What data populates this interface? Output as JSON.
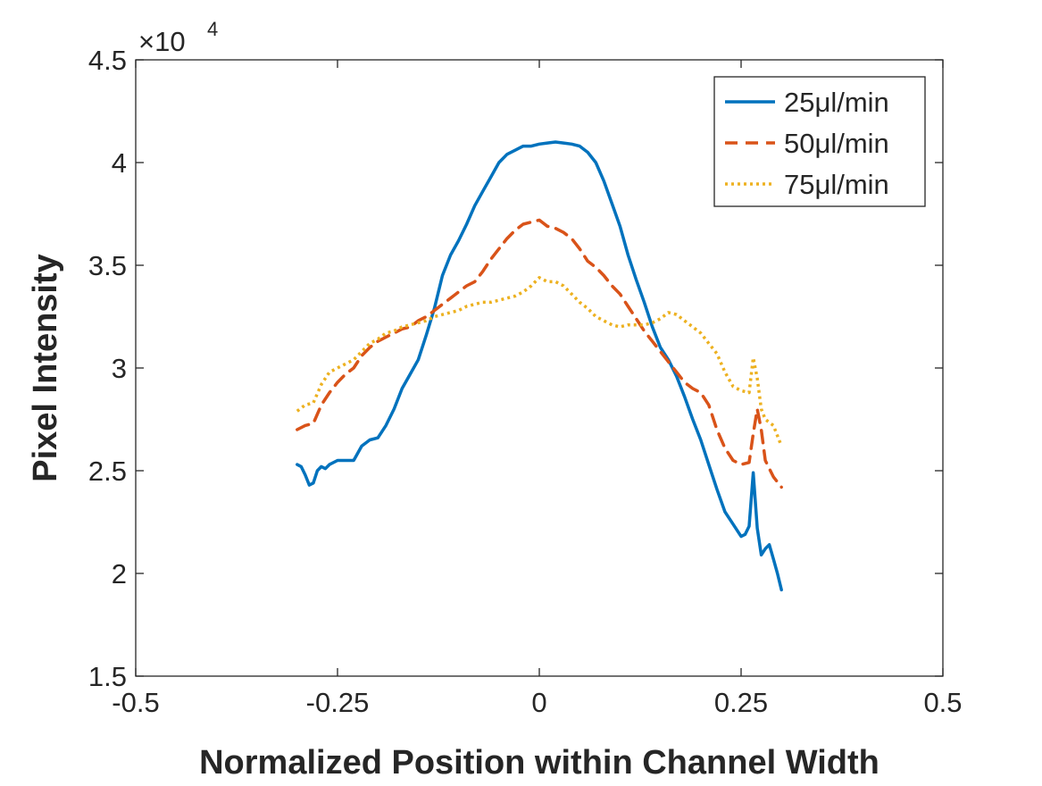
{
  "chart_data": {
    "type": "line",
    "title": "",
    "xlabel": "Normalized Position within Channel Width",
    "ylabel": "Pixel Intensity",
    "xlim": [
      -0.5,
      0.5
    ],
    "ylim": [
      15000,
      45000
    ],
    "y_exponent_label": "×10",
    "y_exponent_power": "4",
    "x_ticks": [
      {
        "value": -0.5,
        "label": "-0.5"
      },
      {
        "value": -0.25,
        "label": "-0.25"
      },
      {
        "value": 0,
        "label": "0"
      },
      {
        "value": 0.25,
        "label": "0.25"
      },
      {
        "value": 0.5,
        "label": "0.5"
      }
    ],
    "y_ticks": [
      {
        "value": 15000,
        "label": "1.5"
      },
      {
        "value": 20000,
        "label": "2"
      },
      {
        "value": 25000,
        "label": "2.5"
      },
      {
        "value": 30000,
        "label": "3"
      },
      {
        "value": 35000,
        "label": "3.5"
      },
      {
        "value": 40000,
        "label": "4"
      },
      {
        "value": 45000,
        "label": "4.5"
      }
    ],
    "grid": false,
    "legend_position": "top-right",
    "series": [
      {
        "name": "25μl/min",
        "color": "#0072BD",
        "dash": "solid",
        "x": [
          -0.3,
          -0.295,
          -0.29,
          -0.285,
          -0.28,
          -0.275,
          -0.27,
          -0.265,
          -0.26,
          -0.25,
          -0.24,
          -0.23,
          -0.22,
          -0.21,
          -0.2,
          -0.19,
          -0.18,
          -0.17,
          -0.16,
          -0.15,
          -0.14,
          -0.13,
          -0.12,
          -0.11,
          -0.1,
          -0.09,
          -0.08,
          -0.07,
          -0.06,
          -0.05,
          -0.04,
          -0.03,
          -0.02,
          -0.01,
          0.0,
          0.01,
          0.02,
          0.03,
          0.04,
          0.05,
          0.06,
          0.07,
          0.08,
          0.09,
          0.1,
          0.11,
          0.12,
          0.13,
          0.14,
          0.15,
          0.16,
          0.17,
          0.18,
          0.19,
          0.2,
          0.21,
          0.22,
          0.23,
          0.24,
          0.25,
          0.255,
          0.26,
          0.265,
          0.27,
          0.275,
          0.28,
          0.285,
          0.29,
          0.295,
          0.3
        ],
        "y": [
          25300,
          25200,
          24800,
          24300,
          24400,
          25000,
          25200,
          25100,
          25300,
          25500,
          25500,
          25500,
          26200,
          26500,
          26600,
          27200,
          28000,
          29000,
          29700,
          30400,
          31600,
          32900,
          34500,
          35500,
          36200,
          37000,
          37900,
          38600,
          39300,
          40000,
          40400,
          40600,
          40800,
          40800,
          40900,
          40950,
          41000,
          40950,
          40900,
          40800,
          40500,
          40000,
          39100,
          38000,
          36900,
          35500,
          34300,
          33200,
          32000,
          31000,
          30400,
          29600,
          28600,
          27500,
          26500,
          25300,
          24100,
          23000,
          22400,
          21800,
          21900,
          22300,
          24900,
          22200,
          20900,
          21200,
          21400,
          20700,
          20000,
          19200
        ]
      },
      {
        "name": "50μl/min",
        "color": "#D95319",
        "dash": "dashed",
        "x": [
          -0.3,
          -0.29,
          -0.28,
          -0.27,
          -0.26,
          -0.25,
          -0.24,
          -0.23,
          -0.22,
          -0.21,
          -0.2,
          -0.19,
          -0.18,
          -0.17,
          -0.16,
          -0.15,
          -0.14,
          -0.13,
          -0.12,
          -0.11,
          -0.1,
          -0.09,
          -0.08,
          -0.07,
          -0.06,
          -0.05,
          -0.04,
          -0.03,
          -0.02,
          -0.01,
          0.0,
          0.01,
          0.02,
          0.03,
          0.04,
          0.05,
          0.06,
          0.07,
          0.08,
          0.09,
          0.1,
          0.11,
          0.12,
          0.13,
          0.14,
          0.15,
          0.16,
          0.17,
          0.18,
          0.19,
          0.2,
          0.21,
          0.22,
          0.23,
          0.24,
          0.25,
          0.26,
          0.265,
          0.27,
          0.275,
          0.28,
          0.29,
          0.3
        ],
        "y": [
          27000,
          27200,
          27300,
          28200,
          28800,
          29300,
          29700,
          30000,
          30600,
          31000,
          31300,
          31500,
          31700,
          31900,
          32000,
          32300,
          32500,
          32800,
          33100,
          33400,
          33700,
          34000,
          34200,
          34700,
          35300,
          35800,
          36300,
          36700,
          37000,
          37100,
          37200,
          36900,
          36800,
          36600,
          36300,
          35800,
          35200,
          34900,
          34500,
          34000,
          33600,
          33000,
          32400,
          31800,
          31300,
          30800,
          30300,
          29800,
          29300,
          29000,
          28800,
          28200,
          27000,
          26100,
          25500,
          25300,
          25400,
          26800,
          28000,
          27000,
          25500,
          24700,
          24200
        ]
      },
      {
        "name": "75μl/min",
        "color": "#EDB120",
        "dash": "dotted",
        "x": [
          -0.3,
          -0.29,
          -0.28,
          -0.27,
          -0.26,
          -0.25,
          -0.24,
          -0.23,
          -0.22,
          -0.21,
          -0.2,
          -0.19,
          -0.18,
          -0.17,
          -0.16,
          -0.15,
          -0.14,
          -0.13,
          -0.12,
          -0.11,
          -0.1,
          -0.09,
          -0.08,
          -0.07,
          -0.06,
          -0.05,
          -0.04,
          -0.03,
          -0.02,
          -0.01,
          0.0,
          0.01,
          0.02,
          0.03,
          0.04,
          0.05,
          0.06,
          0.07,
          0.08,
          0.09,
          0.1,
          0.11,
          0.12,
          0.13,
          0.14,
          0.15,
          0.16,
          0.17,
          0.18,
          0.19,
          0.2,
          0.21,
          0.22,
          0.23,
          0.24,
          0.25,
          0.26,
          0.265,
          0.27,
          0.275,
          0.28,
          0.29,
          0.3
        ],
        "y": [
          27900,
          28200,
          28300,
          29200,
          29800,
          30000,
          30200,
          30400,
          30800,
          31200,
          31400,
          31700,
          31800,
          32000,
          32100,
          32200,
          32300,
          32500,
          32600,
          32700,
          32800,
          33000,
          33100,
          33200,
          33200,
          33300,
          33400,
          33500,
          33700,
          34000,
          34400,
          34200,
          34200,
          34000,
          33600,
          33200,
          32900,
          32500,
          32300,
          32100,
          32000,
          32100,
          32100,
          32100,
          32200,
          32400,
          32700,
          32600,
          32300,
          32000,
          31700,
          31200,
          30700,
          29800,
          29100,
          28900,
          28800,
          30500,
          29500,
          28000,
          27500,
          27200,
          26200
        ]
      }
    ]
  }
}
